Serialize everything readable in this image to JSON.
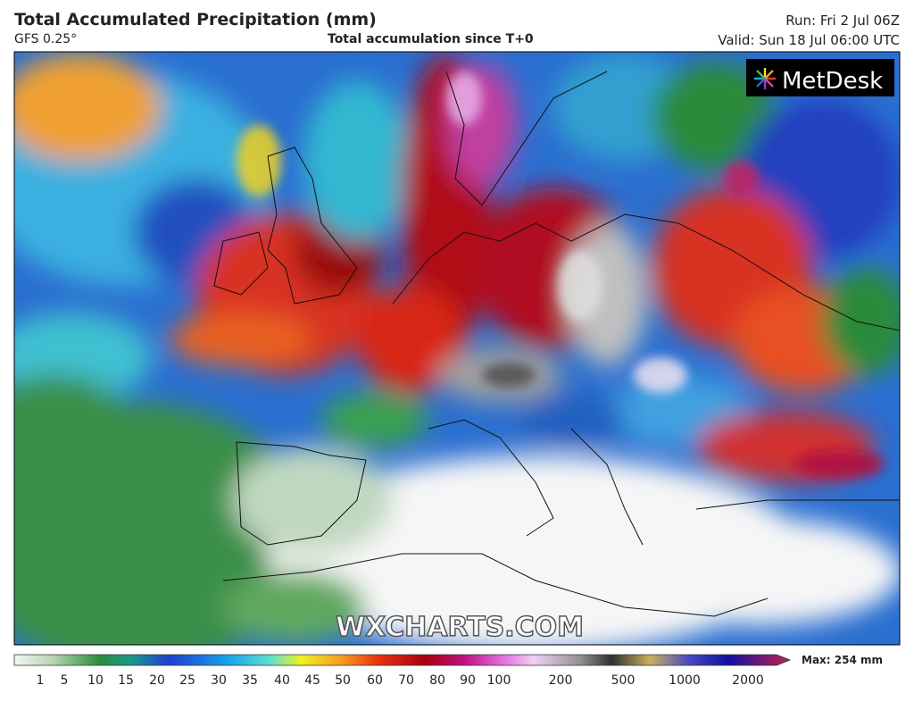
{
  "header": {
    "title": "Total Accumulated Precipitation (mm)",
    "model": "GFS 0.25°",
    "subtitle": "Total accumulation since T+0",
    "run": "Run: Fri 2 Jul 06Z",
    "valid": "Valid: Sun 18 Jul 06:00 UTC"
  },
  "logo": "MetDesk",
  "watermark": "WXCHARTS.COM",
  "colorbar": {
    "ticks": [
      1,
      5,
      10,
      15,
      20,
      25,
      30,
      35,
      40,
      45,
      50,
      60,
      70,
      80,
      90,
      100,
      200,
      500,
      1000,
      2000
    ],
    "max_label": "Max: 254 mm"
  }
}
